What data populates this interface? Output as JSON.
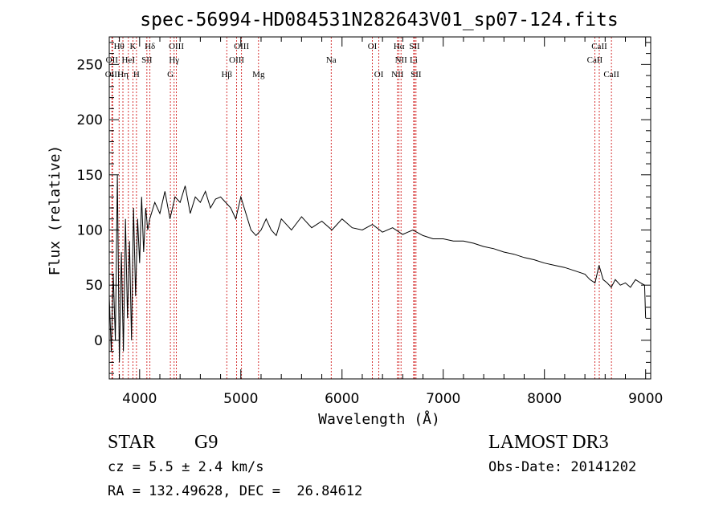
{
  "chart_data": {
    "type": "line",
    "title": "spec-56994-HD084531N282643V01_sp07-124.fits",
    "xlabel": "Wavelength (Å)",
    "ylabel": "Flux (relative)",
    "xlim": [
      3700,
      9050
    ],
    "ylim": [
      -35,
      275
    ],
    "x_ticks": [
      4000,
      5000,
      6000,
      7000,
      8000,
      9000
    ],
    "y_ticks": [
      0,
      50,
      100,
      150,
      200,
      250
    ],
    "x_tick_labels": [
      "4000",
      "5000",
      "6000",
      "7000",
      "8000",
      "9000"
    ],
    "y_tick_labels": [
      "0",
      "50",
      "100",
      "150",
      "200",
      "250"
    ],
    "grid": false,
    "series": [
      {
        "name": "spectrum",
        "x": [
          3700,
          3720,
          3740,
          3760,
          3780,
          3800,
          3820,
          3840,
          3860,
          3880,
          3900,
          3920,
          3940,
          3960,
          3980,
          4000,
          4020,
          4040,
          4060,
          4080,
          4100,
          4150,
          4200,
          4250,
          4300,
          4350,
          4400,
          4450,
          4500,
          4550,
          4600,
          4650,
          4700,
          4750,
          4800,
          4850,
          4900,
          4950,
          5000,
          5050,
          5100,
          5150,
          5200,
          5250,
          5300,
          5350,
          5400,
          5450,
          5500,
          5600,
          5700,
          5800,
          5900,
          6000,
          6100,
          6200,
          6300,
          6400,
          6500,
          6600,
          6700,
          6800,
          6900,
          7000,
          7100,
          7200,
          7300,
          7400,
          7500,
          7600,
          7700,
          7800,
          7900,
          8000,
          8100,
          8200,
          8300,
          8400,
          8450,
          8500,
          8540,
          8580,
          8620,
          8660,
          8700,
          8750,
          8800,
          8850,
          8900,
          8950,
          8990,
          9000
        ],
        "values": [
          40,
          -10,
          60,
          0,
          150,
          -20,
          80,
          -10,
          110,
          20,
          90,
          0,
          120,
          40,
          110,
          70,
          130,
          80,
          120,
          100,
          110,
          125,
          115,
          135,
          110,
          130,
          125,
          140,
          115,
          130,
          125,
          135,
          120,
          128,
          130,
          125,
          120,
          110,
          130,
          115,
          100,
          95,
          100,
          110,
          100,
          95,
          110,
          105,
          100,
          112,
          102,
          108,
          100,
          110,
          102,
          100,
          105,
          98,
          102,
          96,
          100,
          95,
          92,
          92,
          90,
          90,
          88,
          85,
          83,
          80,
          78,
          75,
          73,
          70,
          68,
          66,
          63,
          60,
          55,
          52,
          68,
          55,
          52,
          48,
          55,
          50,
          52,
          48,
          55,
          52,
          50,
          20
        ]
      }
    ],
    "line_markers": [
      {
        "wavelength": 3726,
        "row": 1,
        "label": "OII"
      },
      {
        "wavelength": 3733,
        "row": 2,
        "label": "OIII"
      },
      {
        "wavelength": 3797,
        "row": 0,
        "label": "Hθ"
      },
      {
        "wavelength": 3835,
        "row": 2,
        "label": "Hη"
      },
      {
        "wavelength": 3889,
        "row": 1,
        "label": "HeI"
      },
      {
        "wavelength": 3934,
        "row": 0,
        "label": "K"
      },
      {
        "wavelength": 3969,
        "row": 2,
        "label": "H"
      },
      {
        "wavelength": 4072,
        "row": 1,
        "label": "SII"
      },
      {
        "wavelength": 4102,
        "row": 0,
        "label": "Hδ"
      },
      {
        "wavelength": 4304,
        "row": 2,
        "label": "G"
      },
      {
        "wavelength": 4341,
        "row": 1,
        "label": "Hγ"
      },
      {
        "wavelength": 4363,
        "row": 0,
        "label": "OIII"
      },
      {
        "wavelength": 4861,
        "row": 2,
        "label": "Hβ"
      },
      {
        "wavelength": 4959,
        "row": 1,
        "label": "OIII"
      },
      {
        "wavelength": 5007,
        "row": 0,
        "label": "OIII"
      },
      {
        "wavelength": 5175,
        "row": 2,
        "label": "Mg"
      },
      {
        "wavelength": 5893,
        "row": 1,
        "label": "Na"
      },
      {
        "wavelength": 6300,
        "row": 0,
        "label": "OI"
      },
      {
        "wavelength": 6364,
        "row": 2,
        "label": "OI"
      },
      {
        "wavelength": 6548,
        "row": 2,
        "label": "NII"
      },
      {
        "wavelength": 6563,
        "row": 0,
        "label": "Hα"
      },
      {
        "wavelength": 6583,
        "row": 1,
        "label": "NII"
      },
      {
        "wavelength": 6708,
        "row": 1,
        "label": "Li"
      },
      {
        "wavelength": 6716,
        "row": 0,
        "label": "SII"
      },
      {
        "wavelength": 6731,
        "row": 2,
        "label": "SII"
      },
      {
        "wavelength": 8498,
        "row": 1,
        "label": "CaII"
      },
      {
        "wavelength": 8542,
        "row": 0,
        "label": "CaII"
      },
      {
        "wavelength": 8662,
        "row": 2,
        "label": "CaII"
      }
    ],
    "colors": {
      "line": "#000000",
      "markers": "#cc0000",
      "axes": "#000000",
      "background": "#ffffff"
    }
  },
  "info": {
    "object_class": "STAR",
    "subclass": "G9",
    "survey": "LAMOST DR3",
    "redshift": "cz = 5.5 ± 2.4 km/s",
    "obs_date": "Obs-Date: 20141202",
    "coords": "RA = 132.49628, DEC =  26.84612"
  }
}
